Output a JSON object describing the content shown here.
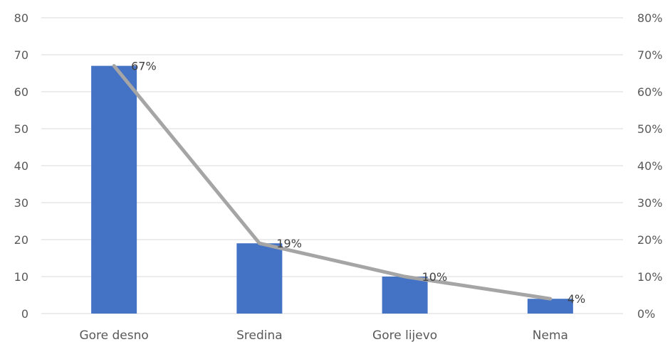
{
  "chart_data": {
    "type": "bar",
    "title": "",
    "categories": [
      "Gore desno",
      "Sredina",
      "Gore lijevo",
      "Nema"
    ],
    "series": [
      {
        "type": "bar",
        "axis": "left",
        "color": "#4472c4",
        "values": [
          67,
          19,
          10,
          4
        ]
      },
      {
        "type": "line",
        "axis": "right",
        "color": "#a5a5a5",
        "values": [
          67,
          19,
          10,
          4
        ],
        "data_labels": [
          "67%",
          "19%",
          "10%",
          "4%"
        ]
      }
    ],
    "y_left": {
      "min": 0,
      "max": 80,
      "step": 10,
      "ticks": [
        "0",
        "10",
        "20",
        "30",
        "40",
        "50",
        "60",
        "70",
        "80"
      ]
    },
    "y_right": {
      "min": 0,
      "max": 80,
      "step": 10,
      "ticks": [
        "0%",
        "10%",
        "20%",
        "30%",
        "40%",
        "50%",
        "60%",
        "70%",
        "80%"
      ]
    },
    "grid": true,
    "legend": "none"
  }
}
